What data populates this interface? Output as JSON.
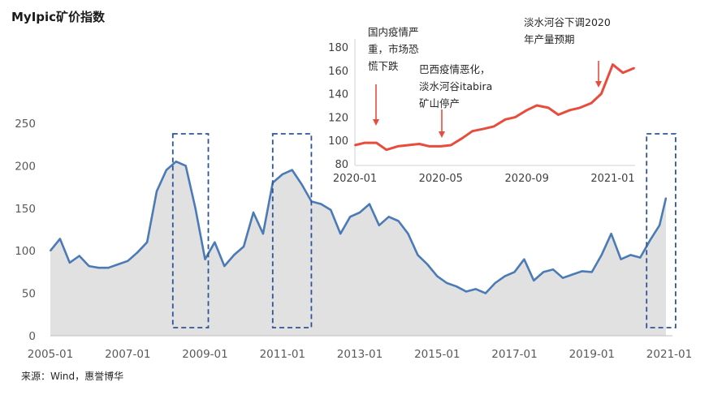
{
  "chart_data": [
    {
      "type": "area",
      "title": "MyIpic矿价指数",
      "source": "来源：Wind，惠誉博华",
      "xlabel": "",
      "ylabel": "",
      "x_ticks": [
        "2005-01",
        "2007-01",
        "2009-01",
        "2011-01",
        "2013-01",
        "2015-01",
        "2017-01",
        "2019-01",
        "2021-01"
      ],
      "y_ticks": [
        "0",
        "50",
        "100",
        "150",
        "200",
        "250"
      ],
      "ylim": [
        0,
        250
      ],
      "xlim": [
        "2005-01",
        "2021-01"
      ],
      "grid": false,
      "colors": {
        "line": "#4a7bb7",
        "area": "#e1e1e1",
        "highlight_box": "#2f5597"
      },
      "highlight_periods": [
        [
          "2008-03",
          "2009-02"
        ],
        [
          "2010-10",
          "2011-10"
        ],
        [
          "2020-06",
          "2021-03"
        ]
      ],
      "series": [
        {
          "x": [
            "2005-01",
            "2005-04",
            "2005-07",
            "2005-10",
            "2006-01",
            "2006-04",
            "2006-07",
            "2006-10",
            "2007-01",
            "2007-04",
            "2007-07",
            "2007-10",
            "2008-01",
            "2008-04",
            "2008-07",
            "2008-10",
            "2009-01",
            "2009-04",
            "2009-07",
            "2009-10",
            "2010-01",
            "2010-04",
            "2010-07",
            "2010-10",
            "2011-01",
            "2011-04",
            "2011-07",
            "2011-10",
            "2012-01",
            "2012-04",
            "2012-07",
            "2012-10",
            "2013-01",
            "2013-04",
            "2013-07",
            "2013-10",
            "2014-01",
            "2014-04",
            "2014-07",
            "2014-10",
            "2015-01",
            "2015-04",
            "2015-07",
            "2015-10",
            "2016-01",
            "2016-04",
            "2016-07",
            "2016-10",
            "2017-01",
            "2017-04",
            "2017-07",
            "2017-10",
            "2018-01",
            "2018-04",
            "2018-07",
            "2018-10",
            "2019-01",
            "2019-04",
            "2019-07",
            "2019-10",
            "2020-01",
            "2020-04",
            "2020-07",
            "2020-10",
            "2020-12"
          ],
          "values": [
            100,
            114,
            86,
            94,
            82,
            80,
            80,
            84,
            88,
            98,
            110,
            170,
            195,
            205,
            200,
            150,
            90,
            110,
            82,
            95,
            105,
            145,
            120,
            180,
            190,
            195,
            178,
            158,
            155,
            148,
            120,
            140,
            145,
            155,
            130,
            140,
            135,
            120,
            95,
            84,
            70,
            62,
            58,
            52,
            55,
            50,
            62,
            70,
            75,
            90,
            65,
            75,
            78,
            68,
            72,
            76,
            75,
            95,
            120,
            90,
            95,
            92,
            112,
            130,
            162
          ]
        }
      ]
    },
    {
      "type": "line",
      "title": "",
      "xlabel": "",
      "ylabel": "",
      "x_ticks": [
        "2020-01",
        "2020-05",
        "2020-09",
        "2021-01"
      ],
      "y_ticks": [
        "80",
        "100",
        "120",
        "140",
        "160",
        "180"
      ],
      "ylim": [
        80,
        180
      ],
      "xlim": [
        "2020-01",
        "2021-02"
      ],
      "grid": false,
      "colors": {
        "line": "#e84c3d",
        "arrow": "#e84c3d"
      },
      "annotations": [
        {
          "lines": [
            "国内疫情严",
            "重，市场恐",
            "慌下跌"
          ],
          "x": "2020-02"
        },
        {
          "lines": [
            "巴西疫情恶化，",
            "淡水河谷itabira",
            "矿山停产"
          ],
          "x": "2020-05"
        },
        {
          "lines": [
            "淡水河谷下调2020",
            "年产量预期"
          ],
          "x": "2020-12"
        }
      ],
      "series": [
        {
          "x": [
            "2020-01-01",
            "2020-01-15",
            "2020-02-01",
            "2020-02-15",
            "2020-03-01",
            "2020-03-15",
            "2020-04-01",
            "2020-04-15",
            "2020-05-01",
            "2020-05-15",
            "2020-06-01",
            "2020-06-15",
            "2020-07-01",
            "2020-07-15",
            "2020-08-01",
            "2020-08-15",
            "2020-09-01",
            "2020-09-15",
            "2020-10-01",
            "2020-10-15",
            "2020-11-01",
            "2020-11-15",
            "2020-12-01",
            "2020-12-15",
            "2021-01-01",
            "2021-01-15",
            "2021-02-01"
          ],
          "values": [
            96,
            98,
            98,
            92,
            95,
            96,
            97,
            95,
            95,
            96,
            102,
            108,
            110,
            112,
            118,
            120,
            126,
            130,
            128,
            122,
            126,
            128,
            132,
            140,
            165,
            158,
            162
          ]
        }
      ]
    }
  ]
}
